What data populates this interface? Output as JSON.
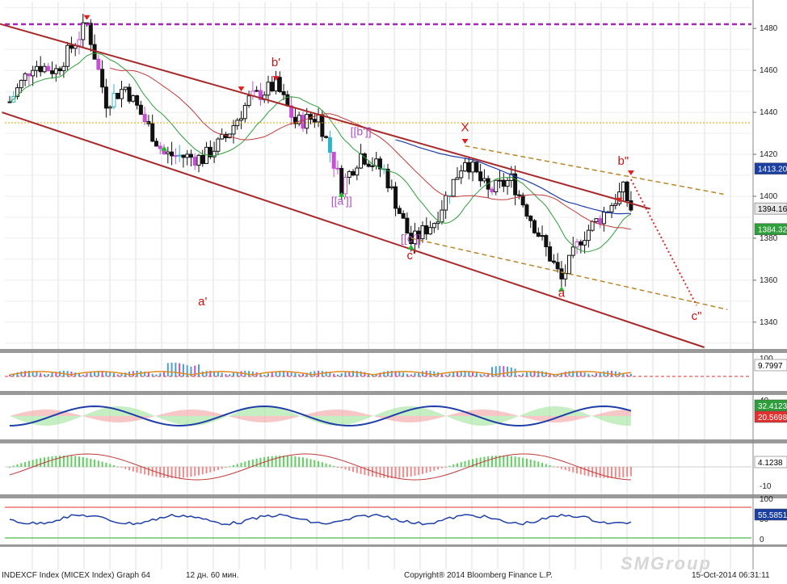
{
  "chart_data": [
    {
      "type": "candlestick",
      "panel": "main",
      "ylim": [
        1328,
        1492
      ],
      "y_ticks": [
        1340,
        1360,
        1380,
        1400,
        1420,
        1440,
        1460,
        1480
      ],
      "price_tags": [
        {
          "label": "1413.20",
          "value": 1413.2,
          "color": "#1a3fa0"
        },
        {
          "label": "1394.16",
          "value": 1394.16,
          "color": "#e6e6e6"
        },
        {
          "label": "1384.32",
          "value": 1384.32,
          "color": "#2e9e3a"
        }
      ],
      "wave_labels": [
        {
          "text": "a'",
          "bar": 50,
          "value": 1348
        },
        {
          "text": "b'",
          "bar": 69,
          "value": 1462
        },
        {
          "text": "[[a']]",
          "bar": 86,
          "value": 1396
        },
        {
          "text": "[[b']]",
          "bar": 91,
          "value": 1429
        },
        {
          "text": "[[c']]",
          "bar": 104,
          "value": 1378
        },
        {
          "text": "c'",
          "bar": 104,
          "value": 1370
        },
        {
          "text": "X",
          "bar": 118,
          "value": 1431
        },
        {
          "text": "a",
          "bar": 143,
          "value": 1352
        },
        {
          "text": "b\"",
          "bar": 159,
          "value": 1415
        },
        {
          "text": "c\"",
          "bar": 178,
          "value": 1341
        }
      ]
    },
    {
      "type": "histogram",
      "panel": "indicator-1",
      "y_ticks": [
        100
      ],
      "tags": [
        {
          "label": "9.7997",
          "color": "#ffffff"
        }
      ]
    },
    {
      "type": "area",
      "panel": "indicator-2",
      "y_ticks": [
        40
      ],
      "tags": [
        {
          "label": "32.4123",
          "color": "#2e9e3a"
        },
        {
          "label": "20.5698",
          "color": "#e03030"
        }
      ]
    },
    {
      "type": "histogram",
      "panel": "indicator-3",
      "y_ticks": [
        -10
      ],
      "tags": [
        {
          "label": "4.1238",
          "color": "#ffffff"
        }
      ]
    },
    {
      "type": "line",
      "panel": "indicator-4",
      "ylim": [
        0,
        100
      ],
      "y_ticks": [
        0,
        50,
        100
      ],
      "tags": [
        {
          "label": "55.5851",
          "color": "#1a3fa0"
        }
      ]
    }
  ],
  "footer": {
    "ticker": "INDEXCF Index  (MICEX Index)  Graph 64",
    "period": "12 дн. 60 мин.",
    "copyright": "Copyright® 2014 Bloomberg Finance L.P.",
    "timestamp": "15-Oct-2014 06:31:11"
  },
  "watermark": "SMGroup"
}
